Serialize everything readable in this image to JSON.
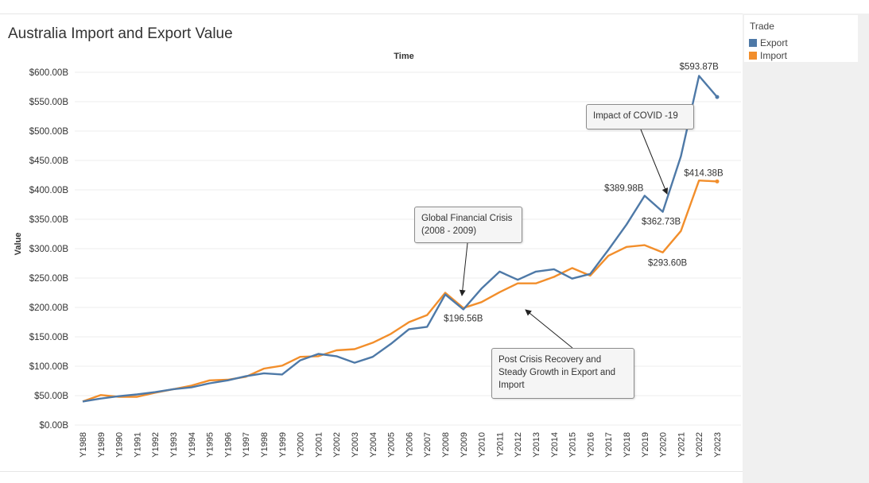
{
  "chart_data": {
    "type": "line",
    "title": "Australia Import and Export Value",
    "top_axis_label": "Time",
    "ylabel": "Value",
    "ylim": [
      0,
      620
    ],
    "y_ticks": [
      0,
      50,
      100,
      150,
      200,
      250,
      300,
      350,
      400,
      450,
      500,
      550,
      600
    ],
    "y_tick_labels": [
      "$0.00B",
      "$50.00B",
      "$100.00B",
      "$150.00B",
      "$200.00B",
      "$250.00B",
      "$300.00B",
      "$350.00B",
      "$400.00B",
      "$450.00B",
      "$500.00B",
      "$550.00B",
      "$600.00B"
    ],
    "x": [
      "Y1988",
      "Y1989",
      "Y1990",
      "Y1991",
      "Y1992",
      "Y1993",
      "Y1994",
      "Y1995",
      "Y1996",
      "Y1997",
      "Y1998",
      "Y1999",
      "Y2000",
      "Y2001",
      "Y2002",
      "Y2003",
      "Y2004",
      "Y2005",
      "Y2006",
      "Y2007",
      "Y2008",
      "Y2009",
      "Y2010",
      "Y2011",
      "Y2012",
      "Y2013",
      "Y2014",
      "Y2015",
      "Y2016",
      "Y2017",
      "Y2018",
      "Y2019",
      "Y2020",
      "Y2021",
      "Y2022",
      "Y2023"
    ],
    "legend_title": "Trade",
    "legend_position": "top-right",
    "series": [
      {
        "name": "Export",
        "color": "#4e79a7",
        "values": [
          40,
          45,
          49,
          52,
          56,
          61,
          64,
          71,
          76,
          83,
          88,
          86,
          110,
          121,
          117,
          106,
          116,
          138,
          163,
          167,
          222,
          196.56,
          232,
          261,
          247,
          261,
          265,
          249,
          257,
          298,
          341,
          389.98,
          362.73,
          457,
          593.87,
          558
        ]
      },
      {
        "name": "Import",
        "color": "#f28e2b",
        "values": [
          40,
          51,
          48,
          48,
          55,
          61,
          67,
          76,
          77,
          82,
          96,
          101,
          116,
          117,
          127,
          129,
          140,
          155,
          175,
          187,
          225,
          199,
          209,
          226,
          241,
          241,
          252,
          267,
          254,
          288,
          303,
          306,
          293.6,
          330,
          416,
          414.38
        ]
      }
    ],
    "data_labels": [
      {
        "series": 0,
        "index": 21,
        "text": "$196.56B"
      },
      {
        "series": 0,
        "index": 31,
        "text": "$389.98B"
      },
      {
        "series": 0,
        "index": 32,
        "text": "$362.73B"
      },
      {
        "series": 0,
        "index": 34,
        "text": "$593.87B"
      },
      {
        "series": 1,
        "index": 32,
        "text": "$293.60B"
      },
      {
        "series": 1,
        "index": 35,
        "text": "$414.38B"
      }
    ]
  },
  "annotations": [
    {
      "lines": [
        "Global Financial Crisis",
        "(2008 - 2009)"
      ]
    },
    {
      "lines": [
        "Impact of COVID -19"
      ]
    },
    {
      "lines": [
        "Post Crisis Recovery and",
        "Steady Growth in  Export and",
        "Import"
      ]
    }
  ]
}
